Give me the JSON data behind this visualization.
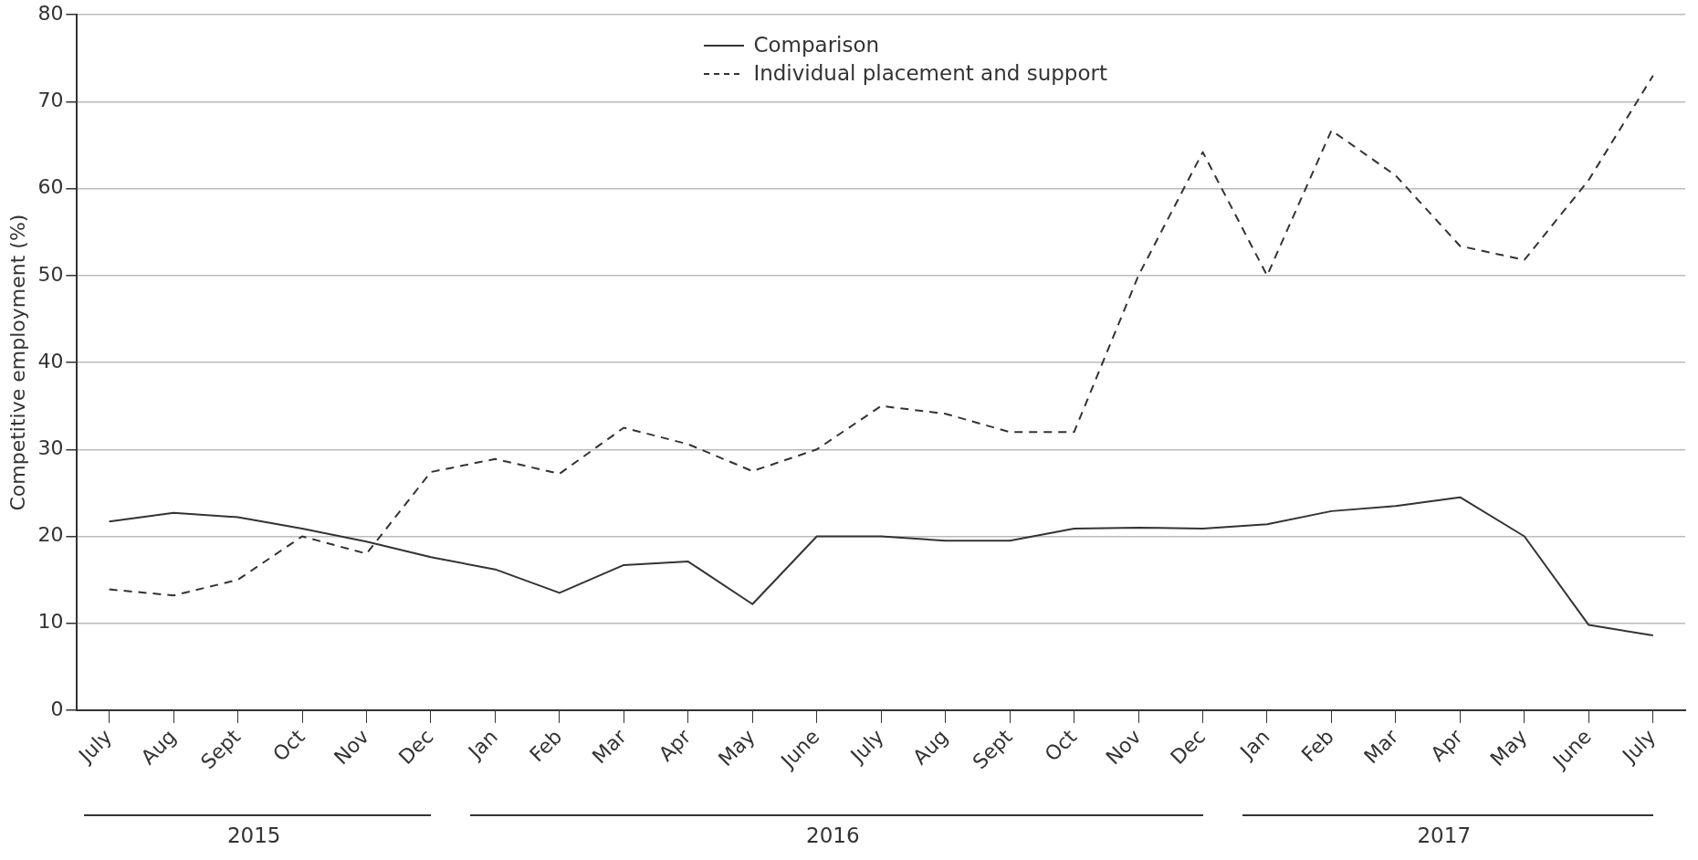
{
  "chart_data": {
    "type": "line",
    "ylabel": "Competitive employment (%)",
    "categories": [
      "July",
      "Aug",
      "Sept",
      "Oct",
      "Nov",
      "Dec",
      "Jan",
      "Feb",
      "Mar",
      "Apr",
      "May",
      "June",
      "July",
      "Aug",
      "Sept",
      "Oct",
      "Nov",
      "Dec",
      "Jan",
      "Feb",
      "Mar",
      "Apr",
      "May",
      "June",
      "July"
    ],
    "series": [
      {
        "name": "Comparison",
        "color": "#333333",
        "line_style": "solid",
        "values": [
          21.7,
          22.7,
          22.2,
          20.9,
          19.4,
          17.6,
          16.2,
          13.5,
          16.7,
          17.1,
          12.2,
          20,
          20,
          19.5,
          19.5,
          20.9,
          21,
          20.9,
          21.4,
          22.9,
          23.5,
          24.5,
          20,
          9.8,
          8.6
        ]
      },
      {
        "name": "Individual placement and support",
        "color": "#333333",
        "line_style": "dashed",
        "values": [
          13.9,
          13.2,
          15,
          20,
          18,
          27.4,
          28.9,
          27.2,
          32.5,
          30.6,
          27.5,
          30,
          35,
          34.1,
          32,
          32,
          50,
          64.2,
          50,
          66.7,
          61.5,
          53.4,
          51.8,
          61,
          73
        ]
      }
    ],
    "ylim": [
      0,
      80
    ],
    "yticks": [
      0,
      10,
      20,
      30,
      40,
      50,
      60,
      70,
      80
    ],
    "grid": "y",
    "legend": "top",
    "marker": "none",
    "annotations": [
      "2015",
      "2016",
      "2017"
    ]
  }
}
